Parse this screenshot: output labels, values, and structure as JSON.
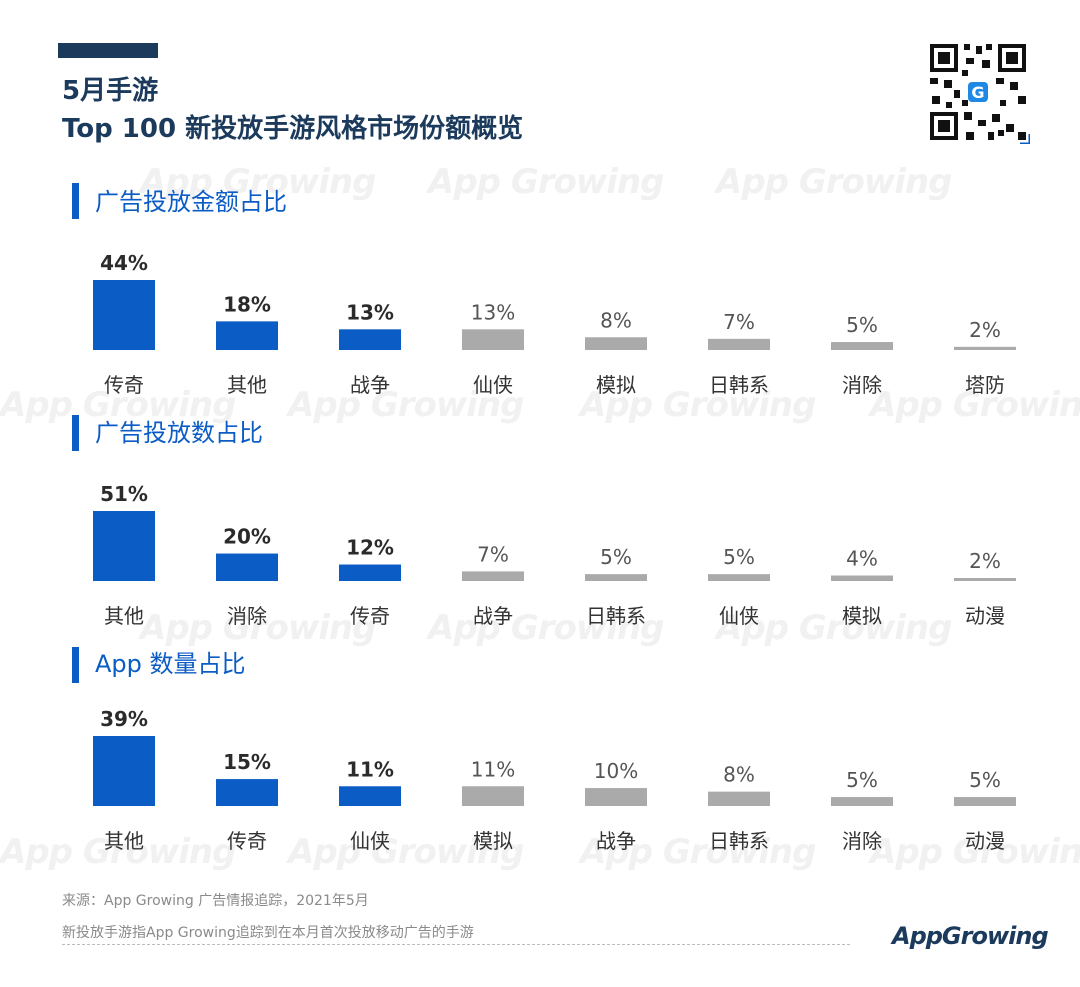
{
  "header": {
    "title_line1": "5月手游",
    "title_line2": "Top 100 新投放手游风格市场份额概览"
  },
  "watermark_text": "App Growing",
  "colors": {
    "highlight": "#0c5cc5",
    "muted": "#aaaaaa",
    "title": "#1b3a5c",
    "accent_bar": "#0c5cc5"
  },
  "chart_data": [
    {
      "type": "bar",
      "title": "广告投放金额占比",
      "categories": [
        "传奇",
        "其他",
        "战争",
        "仙侠",
        "模拟",
        "日韩系",
        "消除",
        "塔防"
      ],
      "values": [
        44,
        18,
        13,
        13,
        8,
        7,
        5,
        2
      ],
      "value_labels": [
        "44%",
        "18%",
        "13%",
        "13%",
        "8%",
        "7%",
        "5%",
        "2%"
      ],
      "highlight_count": 3,
      "unit": "%",
      "ylim": [
        0,
        44
      ]
    },
    {
      "type": "bar",
      "title": "广告投放数占比",
      "categories": [
        "其他",
        "消除",
        "传奇",
        "战争",
        "日韩系",
        "仙侠",
        "模拟",
        "动漫"
      ],
      "values": [
        51,
        20,
        12,
        7,
        5,
        5,
        4,
        2
      ],
      "value_labels": [
        "51%",
        "20%",
        "12%",
        "7%",
        "5%",
        "5%",
        "4%",
        "2%"
      ],
      "highlight_count": 3,
      "unit": "%",
      "ylim": [
        0,
        51
      ]
    },
    {
      "type": "bar",
      "title": "App 数量占比",
      "categories": [
        "其他",
        "传奇",
        "仙侠",
        "模拟",
        "战争",
        "日韩系",
        "消除",
        "动漫"
      ],
      "values": [
        39,
        15,
        11,
        11,
        10,
        8,
        5,
        5
      ],
      "value_labels": [
        "39%",
        "15%",
        "11%",
        "11%",
        "10%",
        "8%",
        "5%",
        "5%"
      ],
      "highlight_count": 3,
      "unit": "%",
      "ylim": [
        0,
        39
      ]
    }
  ],
  "footer": {
    "source": "来源：App Growing 广告情报追踪，2021年5月",
    "note": "新投放手游指App Growing追踪到在本月首次投放移动广告的手游",
    "brand": "AppGrowing"
  }
}
